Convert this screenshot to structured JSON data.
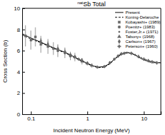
{
  "chart_data": {
    "type": "line",
    "title": "natSb Total",
    "x_label": "Incident Neutron Energy (MeV)",
    "y_label": "Cross Section (b)",
    "log": "x",
    "legend": "top-right",
    "grid": false,
    "xlim": [
      0.07,
      20
    ],
    "xticks": [
      0.1,
      1,
      10
    ],
    "ylim": [
      0,
      10
    ],
    "yticks": [
      0,
      2,
      4,
      6,
      8,
      10
    ],
    "series": [
      {
        "name": "Present",
        "type": "line",
        "line_style": "solid",
        "color": "#000000",
        "x": [
          0.07,
          0.1,
          0.15,
          0.2,
          0.3,
          0.4,
          0.5,
          0.7,
          1,
          1.3,
          1.6,
          2,
          2.5,
          3,
          3.5,
          4,
          5,
          6,
          7,
          8,
          10,
          12,
          15,
          20
        ],
        "values": [
          7.6,
          7.2,
          6.8,
          6.5,
          6.1,
          5.85,
          5.6,
          5.2,
          4.8,
          4.55,
          4.45,
          4.5,
          4.8,
          5.2,
          5.5,
          5.7,
          5.85,
          5.75,
          5.6,
          5.4,
          5.15,
          5.0,
          4.9,
          4.85
        ]
      },
      {
        "name": "Koning-Delaroche",
        "type": "line",
        "line_style": "dashed",
        "color": "#000000",
        "x": [
          0.07,
          0.1,
          0.15,
          0.2,
          0.3,
          0.4,
          0.5,
          0.7,
          1,
          1.3,
          1.6,
          2,
          2.5,
          3,
          3.5,
          4,
          5,
          6,
          7,
          8,
          10,
          12,
          15,
          20
        ],
        "values": [
          7.5,
          7.1,
          6.75,
          6.45,
          6.05,
          5.8,
          5.55,
          5.15,
          4.75,
          4.5,
          4.4,
          4.45,
          4.75,
          5.15,
          5.45,
          5.65,
          5.8,
          5.75,
          5.6,
          5.4,
          5.15,
          5.0,
          4.9,
          4.85
        ]
      },
      {
        "name": "Kobayashi+ (1989)",
        "type": "scatter",
        "marker": "square",
        "color": "#666666",
        "x": [
          0.08,
          0.1,
          0.12,
          0.15,
          0.2,
          0.25,
          0.3,
          0.4,
          0.5,
          0.6,
          0.8
        ],
        "values": [
          7.4,
          7.0,
          7.3,
          6.6,
          6.4,
          6.2,
          6.0,
          5.8,
          5.5,
          5.4,
          5.0
        ],
        "errors": [
          1.0,
          0.9,
          0.9,
          0.8,
          0.7,
          0.6,
          0.6,
          0.5,
          0.4,
          0.4,
          0.3
        ]
      },
      {
        "name": "Poenitz+ (1983)",
        "type": "scatter",
        "marker": "circle",
        "color": "#666666",
        "x": [
          0.3,
          0.5,
          0.7,
          1,
          1.5,
          2,
          2.5,
          3,
          3.5,
          4.5
        ],
        "values": [
          6.1,
          5.6,
          5.2,
          4.8,
          4.45,
          4.5,
          4.85,
          5.2,
          5.5,
          5.75
        ],
        "errors": [
          0.15,
          0.15,
          0.15,
          0.15,
          0.15,
          0.15,
          0.15,
          0.15,
          0.15,
          0.15
        ]
      },
      {
        "name": "Foster,Jr.+ (1971)",
        "type": "scatter",
        "marker": "dot",
        "color": "#666666",
        "x": [
          2.5,
          3.5,
          5,
          7,
          9,
          11,
          13,
          15
        ],
        "values": [
          4.9,
          5.45,
          5.8,
          5.6,
          5.3,
          5.1,
          4.95,
          4.9
        ],
        "errors": [
          0.1,
          0.1,
          0.1,
          0.1,
          0.1,
          0.1,
          0.1,
          0.1
        ]
      },
      {
        "name": "Tabony+ (1968)",
        "type": "scatter",
        "marker": "triangle",
        "color": "#666666",
        "x": [
          0.5,
          0.6,
          0.8,
          1.0,
          1.2
        ],
        "values": [
          5.6,
          5.4,
          5.1,
          4.8,
          4.6
        ],
        "errors": [
          0.2,
          0.2,
          0.2,
          0.2,
          0.2
        ]
      },
      {
        "name": "Carlson+ (1967)",
        "type": "scatter",
        "marker": "diamond",
        "color": "#666666",
        "x": [
          0.15,
          0.2,
          0.3,
          0.4
        ],
        "values": [
          6.9,
          6.6,
          6.2,
          5.9
        ],
        "errors": [
          0.3,
          0.3,
          0.3,
          0.3
        ]
      },
      {
        "name": "Peterson+ (1960)",
        "type": "scatter",
        "marker": "cross",
        "color": "#666666",
        "x": [
          4,
          6,
          8,
          10,
          12,
          14,
          17
        ],
        "values": [
          5.7,
          5.75,
          5.45,
          5.2,
          5.05,
          4.95,
          4.85
        ],
        "errors": [
          0.15,
          0.15,
          0.15,
          0.15,
          0.15,
          0.15,
          0.15
        ]
      }
    ]
  }
}
